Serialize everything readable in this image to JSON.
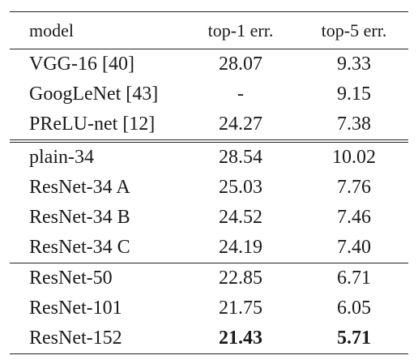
{
  "table": {
    "headers": {
      "model": "model",
      "top1": "top-1 err.",
      "top5": "top-5 err."
    },
    "groups": [
      {
        "rows": [
          {
            "model": "VGG-16 [40]",
            "top1": "28.07",
            "top5": "9.33"
          },
          {
            "model": "GoogLeNet [43]",
            "top1": "-",
            "top5": "9.15"
          },
          {
            "model": "PReLU-net [12]",
            "top1": "24.27",
            "top5": "7.38"
          }
        ]
      },
      {
        "rows": [
          {
            "model": "plain-34",
            "top1": "28.54",
            "top5": "10.02"
          },
          {
            "model": "ResNet-34 A",
            "top1": "25.03",
            "top5": "7.76"
          },
          {
            "model": "ResNet-34 B",
            "top1": "24.52",
            "top5": "7.46"
          },
          {
            "model": "ResNet-34 C",
            "top1": "24.19",
            "top5": "7.40"
          }
        ]
      },
      {
        "rows": [
          {
            "model": "ResNet-50",
            "top1": "22.85",
            "top5": "6.71"
          },
          {
            "model": "ResNet-101",
            "top1": "21.75",
            "top5": "6.05"
          },
          {
            "model": "ResNet-152",
            "top1": "21.43",
            "top5": "5.71",
            "bold": true
          }
        ]
      }
    ]
  }
}
